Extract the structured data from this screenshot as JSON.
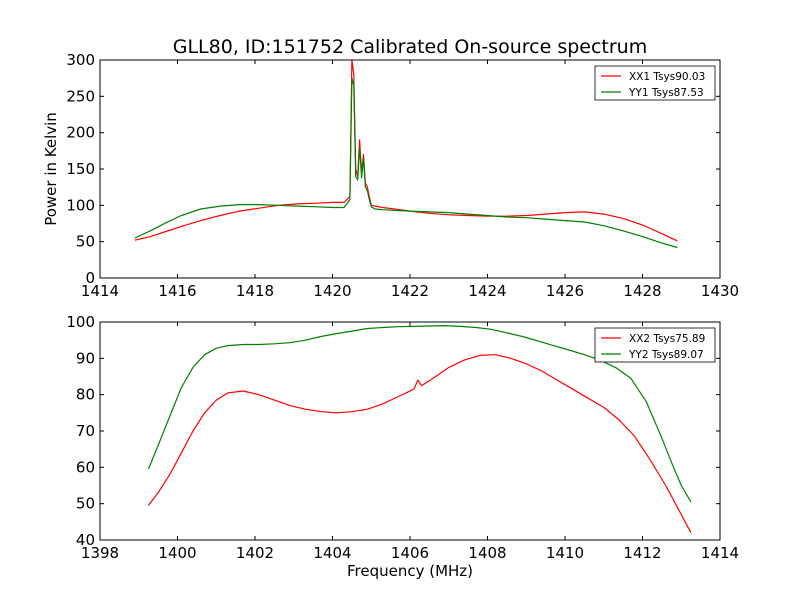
{
  "figure": {
    "title": "GLL80, ID:151752 Calibrated On-source spectrum"
  },
  "chart_data": [
    {
      "type": "line",
      "title": "GLL80, ID:151752 Calibrated On-source spectrum",
      "xlabel": "",
      "ylabel": "Power in Kelvin",
      "xlim": [
        1414,
        1430
      ],
      "ylim": [
        0,
        300
      ],
      "xticks": [
        1414,
        1416,
        1418,
        1420,
        1422,
        1424,
        1426,
        1428,
        1430
      ],
      "yticks": [
        0,
        50,
        100,
        150,
        200,
        250,
        300
      ],
      "grid": false,
      "legend_position": "top-right",
      "series": [
        {
          "name": "XX1 Tsys90.03",
          "color": "#ff0000",
          "x": [
            1414.9,
            1415.3,
            1415.7,
            1416.1,
            1416.6,
            1417.1,
            1417.6,
            1418.1,
            1418.6,
            1419.1,
            1419.6,
            1420.0,
            1420.3,
            1420.45,
            1420.5,
            1420.55,
            1420.6,
            1420.65,
            1420.7,
            1420.75,
            1420.8,
            1420.85,
            1420.9,
            1420.95,
            1421.0,
            1421.1,
            1421.3,
            1421.6,
            1422.0,
            1422.5,
            1423.0,
            1423.5,
            1424.0,
            1424.5,
            1425.0,
            1425.5,
            1426.0,
            1426.5,
            1427.0,
            1427.5,
            1428.0,
            1428.5,
            1428.9
          ],
          "values": [
            52,
            57,
            64,
            71,
            79,
            86,
            92,
            96,
            100,
            102,
            103,
            104,
            104,
            112,
            300,
            280,
            150,
            140,
            190,
            145,
            170,
            130,
            125,
            112,
            100,
            99,
            97,
            95,
            92,
            89,
            87,
            86,
            85,
            85,
            86,
            88,
            90,
            91,
            88,
            82,
            73,
            61,
            51
          ]
        },
        {
          "name": "YY1 Tsys87.53",
          "color": "#008000",
          "x": [
            1414.9,
            1415.3,
            1415.7,
            1416.1,
            1416.6,
            1417.1,
            1417.6,
            1418.1,
            1418.6,
            1419.1,
            1419.6,
            1420.0,
            1420.3,
            1420.45,
            1420.5,
            1420.55,
            1420.6,
            1420.65,
            1420.7,
            1420.75,
            1420.8,
            1420.85,
            1420.9,
            1420.95,
            1421.0,
            1421.1,
            1421.3,
            1421.6,
            1422.0,
            1422.5,
            1423.0,
            1423.5,
            1424.0,
            1424.5,
            1425.0,
            1425.5,
            1426.0,
            1426.5,
            1427.0,
            1427.5,
            1428.0,
            1428.5,
            1428.9
          ],
          "values": [
            55,
            65,
            76,
            86,
            95,
            99,
            101,
            101,
            100,
            99,
            98,
            97,
            97,
            108,
            275,
            265,
            140,
            135,
            180,
            138,
            165,
            125,
            120,
            108,
            98,
            95,
            94,
            93,
            92,
            91,
            90,
            88,
            86,
            84,
            83,
            81,
            79,
            77,
            72,
            65,
            57,
            48,
            42
          ]
        }
      ]
    },
    {
      "type": "line",
      "title": "",
      "xlabel": "Frequency (MHz)",
      "ylabel": "",
      "xlim": [
        1398,
        1414
      ],
      "ylim": [
        40,
        100
      ],
      "xticks": [
        1398,
        1400,
        1402,
        1404,
        1406,
        1408,
        1410,
        1412,
        1414
      ],
      "yticks": [
        40,
        50,
        60,
        70,
        80,
        90,
        100
      ],
      "grid": false,
      "legend_position": "top-right",
      "series": [
        {
          "name": "XX2 Tsys75.89",
          "color": "#ff0000",
          "x": [
            1399.25,
            1399.5,
            1399.8,
            1400.1,
            1400.4,
            1400.7,
            1401.0,
            1401.3,
            1401.7,
            1402.1,
            1402.5,
            1402.9,
            1403.3,
            1403.7,
            1404.1,
            1404.5,
            1404.9,
            1405.3,
            1405.7,
            1406.1,
            1406.2,
            1406.3,
            1406.6,
            1407.0,
            1407.4,
            1407.8,
            1408.2,
            1408.6,
            1409.0,
            1409.4,
            1409.8,
            1410.2,
            1410.6,
            1411.0,
            1411.4,
            1411.8,
            1412.2,
            1412.6,
            1413.0,
            1413.25
          ],
          "values": [
            49.5,
            53,
            58,
            64,
            70,
            75,
            78.5,
            80.5,
            81,
            80,
            78.5,
            77,
            76,
            75.3,
            75,
            75.3,
            76,
            77.5,
            79.5,
            81.5,
            84,
            82.5,
            84.5,
            87.5,
            89.5,
            90.8,
            91,
            90,
            88.5,
            86.5,
            84,
            81.5,
            79,
            76.5,
            73,
            68.5,
            62,
            55,
            47,
            42
          ]
        },
        {
          "name": "YY2 Tsys89.07",
          "color": "#008000",
          "x": [
            1399.25,
            1399.5,
            1399.8,
            1400.1,
            1400.4,
            1400.7,
            1401.0,
            1401.3,
            1401.7,
            1402.1,
            1402.5,
            1402.9,
            1403.3,
            1403.7,
            1404.1,
            1404.5,
            1404.9,
            1405.3,
            1405.7,
            1406.1,
            1406.5,
            1406.9,
            1407.3,
            1407.7,
            1408.1,
            1408.5,
            1408.9,
            1409.3,
            1409.7,
            1410.1,
            1410.5,
            1410.9,
            1411.3,
            1411.7,
            1412.1,
            1412.5,
            1412.8,
            1413.0,
            1413.25
          ],
          "values": [
            59.5,
            66,
            74,
            82,
            87.5,
            91,
            92.8,
            93.5,
            93.8,
            93.8,
            94,
            94.3,
            95,
            96,
            96.8,
            97.5,
            98.2,
            98.5,
            98.7,
            98.8,
            98.9,
            99,
            98.8,
            98.5,
            98,
            97,
            96,
            94.8,
            93.5,
            92.3,
            91,
            89.5,
            87.5,
            84.5,
            78,
            68,
            60,
            55,
            50.5
          ]
        }
      ]
    }
  ]
}
